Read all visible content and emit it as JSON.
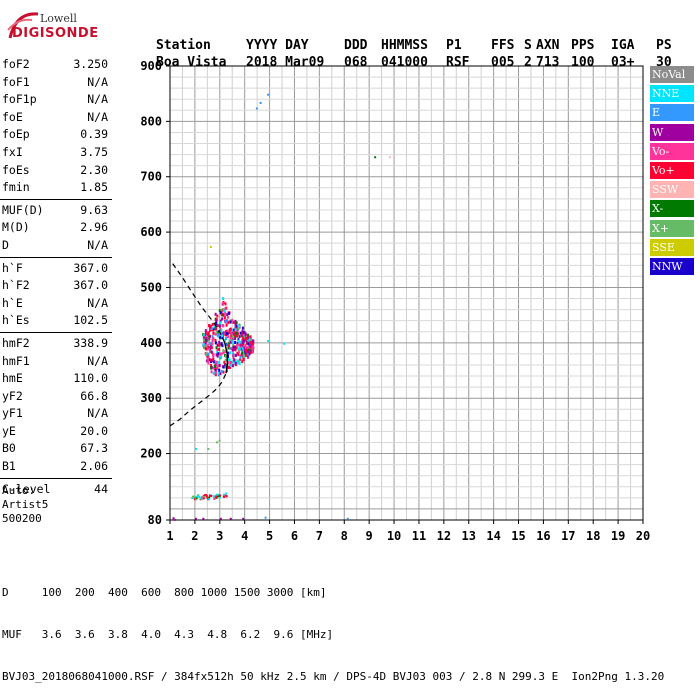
{
  "logo": {
    "top": "Lowell",
    "bottom": "DIGISONDE"
  },
  "header": {
    "labels": [
      "Station",
      "YYYY DAY",
      "DDD",
      "HHMMSS",
      "P1",
      "FFS",
      "S",
      "AXN",
      "PPS",
      "IGA",
      "PS"
    ],
    "values": [
      "Boa Vista",
      "2018 Mar09",
      "068",
      "041000",
      "RSF",
      "005",
      "2",
      "713",
      "100",
      "03+",
      "30"
    ]
  },
  "params": [
    {
      "label": "foF2",
      "value": "3.250"
    },
    {
      "label": "foF1",
      "value": "N/A"
    },
    {
      "label": "foF1p",
      "value": "N/A"
    },
    {
      "label": "foE",
      "value": "N/A"
    },
    {
      "label": "foEp",
      "value": "0.39"
    },
    {
      "label": "fxI",
      "value": "3.75"
    },
    {
      "label": "foEs",
      "value": "2.30"
    },
    {
      "label": "fmin",
      "value": "1.85"
    },
    {
      "sep": true
    },
    {
      "label": "MUF(D)",
      "value": "9.63"
    },
    {
      "label": "M(D)",
      "value": "2.96"
    },
    {
      "label": "D",
      "value": "N/A"
    },
    {
      "sep": true
    },
    {
      "label": "h`F",
      "value": "367.0"
    },
    {
      "label": "h`F2",
      "value": "367.0"
    },
    {
      "label": "h`E",
      "value": "N/A"
    },
    {
      "label": "h`Es",
      "value": "102.5"
    },
    {
      "sep": true
    },
    {
      "label": "hmF2",
      "value": "338.9"
    },
    {
      "label": "hmF1",
      "value": "N/A"
    },
    {
      "label": "hmE",
      "value": "110.0"
    },
    {
      "label": "yF2",
      "value": "66.8"
    },
    {
      "label": "yF1",
      "value": "N/A"
    },
    {
      "label": "yE",
      "value": "20.0"
    },
    {
      "label": "B0",
      "value": "67.3"
    },
    {
      "label": "B1",
      "value": "2.06"
    },
    {
      "sep": true
    },
    {
      "label": "C-level",
      "value": "44"
    }
  ],
  "auto": {
    "line1": "Auto:",
    "line2": "Artist5",
    "line3": "500200"
  },
  "legend": [
    {
      "label": "NoVal",
      "color": "#8c8c8c"
    },
    {
      "label": "NNE",
      "color": "#00e5ff"
    },
    {
      "label": "E",
      "color": "#3399ff"
    },
    {
      "label": "W",
      "color": "#a000a0"
    },
    {
      "label": "Vo-",
      "color": "#ff3399"
    },
    {
      "label": "Vo+",
      "color": "#ff0033"
    },
    {
      "label": "SSW",
      "color": "#ffb3b3"
    },
    {
      "label": "X-",
      "color": "#007a00"
    },
    {
      "label": "X+",
      "color": "#66bb66"
    },
    {
      "label": "SSE",
      "color": "#cccc00"
    },
    {
      "label": "NNW",
      "color": "#1a00cc"
    }
  ],
  "footer": {
    "row1": "D     100  200  400  600  800 1000 1500 3000 [km]",
    "row2": "MUF   3.6  3.6  3.8  4.0  4.3  4.8  6.2  9.6 [MHz]",
    "row3": "BVJ03_2018068041000.RSF / 384fx512h 50 kHz 2.5 km / DPS-4D BVJ03 003 / 2.8 N 299.3 E  Ion2Png 1.3.20"
  },
  "chart_data": {
    "type": "scatter",
    "xlim": [
      1,
      20
    ],
    "ylim": [
      80,
      900
    ],
    "x_ticks": [
      1,
      2,
      3,
      4,
      5,
      6,
      7,
      8,
      9,
      10,
      11,
      12,
      13,
      14,
      15,
      16,
      17,
      18,
      19,
      20
    ],
    "y_ticks": [
      80,
      200,
      300,
      400,
      500,
      600,
      700,
      800,
      900
    ],
    "grid": true,
    "profile_curve": {
      "x": [
        1.0,
        1.4,
        1.8,
        2.2,
        2.6,
        2.9,
        3.1,
        3.25,
        3.3,
        3.3,
        3.2,
        3.0,
        2.7,
        2.3,
        1.9,
        1.5,
        1.0
      ],
      "y": [
        250,
        262,
        278,
        292,
        306,
        318,
        330,
        345,
        360,
        380,
        400,
        420,
        440,
        463,
        490,
        518,
        550
      ]
    },
    "trace_F2": {
      "x": [
        2.35,
        2.45,
        2.55,
        2.65,
        2.75,
        2.85,
        2.95,
        3.05,
        3.15,
        3.25,
        3.35,
        3.45,
        3.55,
        3.65,
        3.75,
        3.85,
        3.95,
        4.05,
        4.15,
        4.25
      ],
      "y_min": [
        390,
        370,
        360,
        350,
        345,
        342,
        342,
        345,
        350,
        352,
        355,
        358,
        360,
        362,
        365,
        368,
        372,
        375,
        380,
        385
      ],
      "y_max": [
        420,
        425,
        435,
        440,
        450,
        455,
        465,
        475,
        485,
        470,
        460,
        450,
        445,
        440,
        435,
        430,
        425,
        420,
        415,
        410
      ]
    },
    "es_trace": {
      "x": [
        1.9,
        2.0,
        2.1,
        2.2,
        2.3,
        2.4,
        2.5,
        2.6,
        2.7,
        2.8,
        2.9,
        3.0,
        3.1,
        3.2
      ],
      "y": [
        122,
        121,
        124,
        121,
        123,
        125,
        120,
        126,
        122,
        124,
        127,
        125,
        126,
        127
      ]
    },
    "sporadic_points": [
      {
        "x": 4.9,
        "y": 850,
        "dir": "E"
      },
      {
        "x": 4.6,
        "y": 835,
        "dir": "E"
      },
      {
        "x": 4.45,
        "y": 825,
        "dir": "E"
      },
      {
        "x": 9.2,
        "y": 737,
        "dir": "X-"
      },
      {
        "x": 9.8,
        "y": 737,
        "dir": "SSW"
      },
      {
        "x": 5.55,
        "y": 400,
        "dir": "NNE"
      },
      {
        "x": 4.9,
        "y": 405,
        "dir": "NNE"
      },
      {
        "x": 2.95,
        "y": 225,
        "dir": "X+"
      },
      {
        "x": 2.85,
        "y": 222,
        "dir": "X+"
      },
      {
        "x": 2.5,
        "y": 210,
        "dir": "X+"
      },
      {
        "x": 2.0,
        "y": 210,
        "dir": "NNE"
      },
      {
        "x": 2.6,
        "y": 575,
        "dir": "SSE"
      },
      {
        "x": 1.1,
        "y": 85,
        "dir": "W"
      },
      {
        "x": 1.15,
        "y": 82,
        "dir": "W"
      },
      {
        "x": 2.0,
        "y": 84,
        "dir": "W"
      },
      {
        "x": 2.3,
        "y": 84,
        "dir": "W"
      },
      {
        "x": 3.0,
        "y": 84,
        "dir": "W"
      },
      {
        "x": 3.4,
        "y": 84,
        "dir": "W"
      },
      {
        "x": 3.9,
        "y": 84,
        "dir": "W"
      },
      {
        "x": 4.8,
        "y": 86,
        "dir": "E"
      },
      {
        "x": 8.1,
        "y": 84,
        "dir": "E"
      }
    ]
  }
}
